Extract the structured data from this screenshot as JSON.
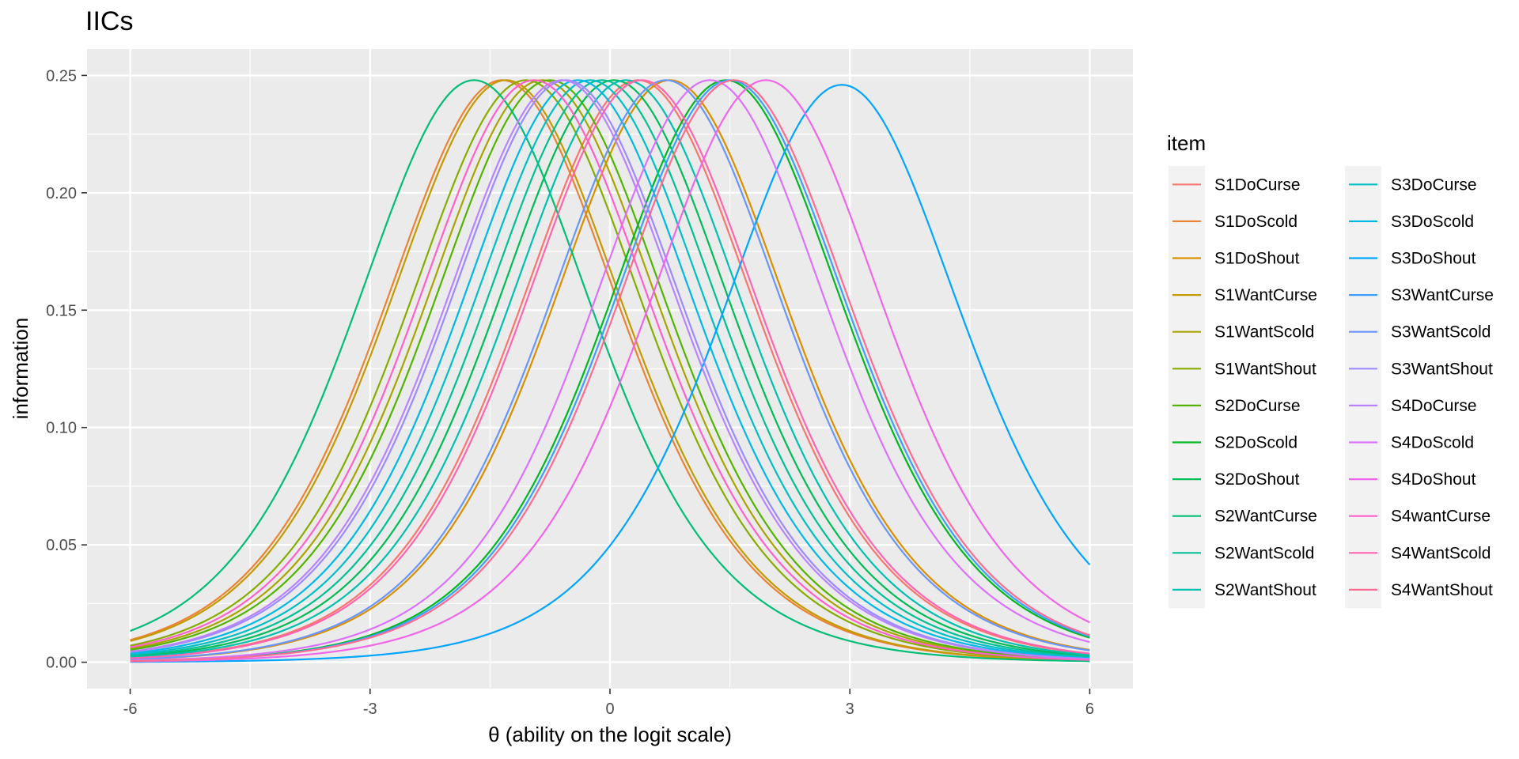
{
  "chart_data": {
    "type": "line",
    "title": "IICs",
    "xlabel": "θ (ability on the logit scale)",
    "ylabel": "information",
    "xlim": [
      -6,
      6
    ],
    "ylim": [
      0,
      0.25
    ],
    "x_ticks": [
      -6,
      -3,
      0,
      3,
      6
    ],
    "x_tick_labels": [
      "-6",
      "-3",
      "0",
      "3",
      "6"
    ],
    "y_ticks": [
      0,
      0.05,
      0.1,
      0.15,
      0.2,
      0.25
    ],
    "y_tick_labels": [
      "0.00",
      "0.05",
      "0.10",
      "0.15",
      "0.20",
      "0.25"
    ],
    "grid": true,
    "legend": {
      "title": "item",
      "placement": "right",
      "columns": 2
    },
    "curve_model": "2PL item information: I(θ) = a² · p(1 − p), p = 1 / (1 + exp(−a(θ − b)))",
    "series": [
      {
        "name": "S1DoCurse",
        "color": "#F8766D",
        "a": 0.996,
        "b": 0.35
      },
      {
        "name": "S1DoScold",
        "color": "#EB8335",
        "a": 0.996,
        "b": -1.35
      },
      {
        "name": "S1DoShout",
        "color": "#DA8F00",
        "a": 0.996,
        "b": 0.75
      },
      {
        "name": "S1WantCurse",
        "color": "#C49A00",
        "a": 0.996,
        "b": -1.3
      },
      {
        "name": "S1WantScold",
        "color": "#A9A400",
        "a": 0.996,
        "b": -0.85
      },
      {
        "name": "S1WantShout",
        "color": "#86AC00",
        "a": 0.996,
        "b": -1.05
      },
      {
        "name": "S2DoCurse",
        "color": "#53B400",
        "a": 0.996,
        "b": -0.75
      },
      {
        "name": "S2DoScold",
        "color": "#00B81F",
        "a": 0.996,
        "b": 1.45
      },
      {
        "name": "S2DoShout",
        "color": "#00BC56",
        "a": 0.996,
        "b": 0.05
      },
      {
        "name": "S2WantCurse",
        "color": "#00BE76",
        "a": 0.996,
        "b": -1.7
      },
      {
        "name": "S2WantScold",
        "color": "#00C094",
        "a": 0.996,
        "b": -0.1
      },
      {
        "name": "S2WantShout",
        "color": "#00C0AF",
        "a": 0.996,
        "b": 0.2
      },
      {
        "name": "S3DoCurse",
        "color": "#00BFC4",
        "a": 0.996,
        "b": -0.25
      },
      {
        "name": "S3DoScold",
        "color": "#00B8E5",
        "a": 0.996,
        "b": -0.4
      },
      {
        "name": "S3DoShout",
        "color": "#00A5FF",
        "a": 0.992,
        "b": 2.9
      },
      {
        "name": "S3WantCurse",
        "color": "#3D9EFF",
        "a": 0.996,
        "b": 1.5
      },
      {
        "name": "S3WantScold",
        "color": "#6995FF",
        "a": 0.996,
        "b": 0.7
      },
      {
        "name": "S3WantShout",
        "color": "#9B8BFF",
        "a": 0.996,
        "b": -0.55
      },
      {
        "name": "S4DoCurse",
        "color": "#B983FF",
        "a": 0.996,
        "b": -0.6
      },
      {
        "name": "S4DoScold",
        "color": "#DB72FB",
        "a": 0.996,
        "b": 1.25
      },
      {
        "name": "S4DoShout",
        "color": "#F166E8",
        "a": 0.996,
        "b": 1.95
      },
      {
        "name": "S4wantCurse",
        "color": "#FF61C9",
        "a": 0.996,
        "b": -0.95
      },
      {
        "name": "S4WantScold",
        "color": "#FF65AE",
        "a": 0.996,
        "b": 0.4
      },
      {
        "name": "S4WantShout",
        "color": "#FF6C91",
        "a": 0.996,
        "b": 1.55
      }
    ]
  }
}
